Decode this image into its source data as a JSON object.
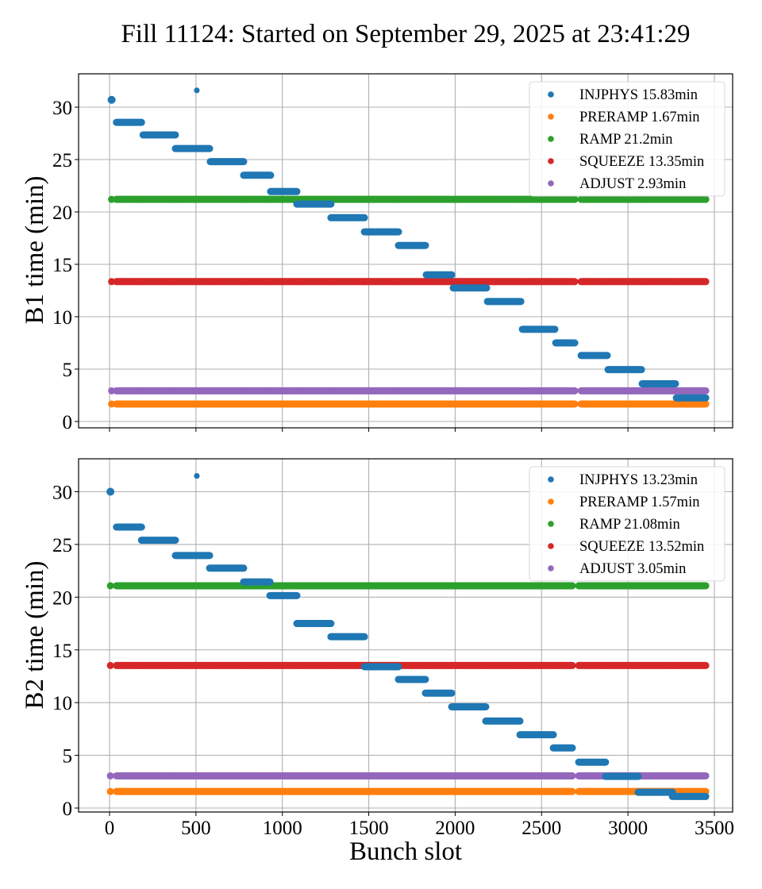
{
  "chart_data": [
    {
      "type": "scatter",
      "panel": "top",
      "title": "Fill 11124: Started on September 29, 2025 at 23:41:29",
      "xlabel": "Bunch slot",
      "ylabel": "B1 time (min)",
      "xlim": [
        -180,
        3600
      ],
      "ylim": [
        -0.5,
        33.2
      ],
      "xticks": [
        0,
        500,
        1000,
        1500,
        2000,
        2500,
        3000,
        3500
      ],
      "xtick_labels_visible": false,
      "yticks": [
        0,
        5,
        10,
        15,
        20,
        25,
        30
      ],
      "grid": true,
      "legend_position": "top-right",
      "batches": [
        [
          12,
          185
        ],
        [
          185,
          381
        ],
        [
          381,
          579
        ],
        [
          583,
          776
        ],
        [
          776,
          932
        ],
        [
          932,
          1084
        ],
        [
          1084,
          1281
        ],
        [
          1281,
          1475
        ],
        [
          1475,
          1672
        ],
        [
          1672,
          1828
        ],
        [
          1833,
          1980
        ],
        [
          1989,
          2182
        ],
        [
          2187,
          2380
        ],
        [
          2389,
          2577
        ],
        [
          2582,
          2692
        ],
        [
          2729,
          2880
        ],
        [
          2885,
          3078
        ],
        [
          3082,
          3275
        ],
        [
          3280,
          3450
        ]
      ],
      "series": [
        {
          "name": "INJPHYS",
          "legend": "INJPHYS 15.83min",
          "color": "#1f77b4",
          "points": [
            [
              12,
              30.7
            ],
            [
              505,
              31.6
            ]
          ],
          "segments": [
            [
              40,
              185,
              28.55
            ],
            [
              194,
              381,
              27.35
            ],
            [
              381,
              579,
              26.05
            ],
            [
              583,
              776,
              24.8
            ],
            [
              776,
              932,
              23.5
            ],
            [
              932,
              1084,
              21.95
            ],
            [
              1084,
              1281,
              20.75
            ],
            [
              1281,
              1475,
              19.45
            ],
            [
              1475,
              1672,
              18.1
            ],
            [
              1672,
              1828,
              16.8
            ],
            [
              1833,
              1980,
              14.0
            ],
            [
              1989,
              2182,
              12.75
            ],
            [
              2187,
              2380,
              11.45
            ],
            [
              2389,
              2577,
              8.8
            ],
            [
              2582,
              2692,
              7.5
            ],
            [
              2729,
              2880,
              6.3
            ],
            [
              2885,
              3078,
              4.95
            ],
            [
              3082,
              3275,
              3.6
            ],
            [
              3280,
              3450,
              2.25
            ]
          ]
        },
        {
          "name": "PRERAMP",
          "legend": "PRERAMP 1.67min",
          "color": "#ff7f0e",
          "value": 1.67,
          "points": [
            [
              12,
              1.67
            ]
          ]
        },
        {
          "name": "RAMP",
          "legend": "RAMP 21.2min",
          "color": "#2ca02c",
          "value": 21.2,
          "points": [
            [
              12,
              21.2
            ]
          ]
        },
        {
          "name": "SQUEEZE",
          "legend": "SQUEEZE 13.35min",
          "color": "#d62728",
          "value": 13.35,
          "points": [
            [
              12,
              13.35
            ]
          ]
        },
        {
          "name": "ADJUST",
          "legend": "ADJUST 2.93min",
          "color": "#9467bd",
          "value": 2.93,
          "points": [
            [
              12,
              2.93
            ]
          ]
        }
      ]
    },
    {
      "type": "scatter",
      "panel": "bottom",
      "xlabel": "Bunch slot",
      "ylabel": "B2 time (min)",
      "xlim": [
        -180,
        3600
      ],
      "ylim": [
        -0.5,
        33.2
      ],
      "xticks": [
        0,
        500,
        1000,
        1500,
        2000,
        2500,
        3000,
        3500
      ],
      "xtick_labels": [
        "0",
        "500",
        "1000",
        "1500",
        "2000",
        "2500",
        "3000",
        "3500"
      ],
      "yticks": [
        0,
        5,
        10,
        15,
        20,
        25,
        30
      ],
      "grid": true,
      "legend_position": "top-right",
      "batches": [
        [
          40,
          185
        ],
        [
          185,
          381
        ],
        [
          381,
          579
        ],
        [
          579,
          776
        ],
        [
          776,
          928
        ],
        [
          928,
          1084
        ],
        [
          1084,
          1281
        ],
        [
          1281,
          1475
        ],
        [
          1475,
          1672
        ],
        [
          1672,
          1828
        ],
        [
          1828,
          1980
        ],
        [
          1980,
          2177
        ],
        [
          2177,
          2375
        ],
        [
          2375,
          2568
        ],
        [
          2568,
          2678
        ],
        [
          2715,
          2870
        ],
        [
          2870,
          3059
        ],
        [
          3059,
          3257
        ],
        [
          3257,
          3450
        ]
      ],
      "series": [
        {
          "name": "INJPHYS",
          "legend": "INJPHYS 13.23min",
          "color": "#1f77b4",
          "points": [
            [
              5,
              30.0
            ],
            [
              505,
              31.5
            ]
          ],
          "segments": [
            [
              40,
              185,
              26.65
            ],
            [
              185,
              381,
              25.4
            ],
            [
              381,
              579,
              23.95
            ],
            [
              579,
              776,
              22.75
            ],
            [
              776,
              928,
              21.45
            ],
            [
              928,
              1084,
              20.15
            ],
            [
              1084,
              1281,
              17.5
            ],
            [
              1281,
              1475,
              16.25
            ],
            [
              1475,
              1672,
              13.4
            ],
            [
              1672,
              1828,
              12.2
            ],
            [
              1828,
              1980,
              10.9
            ],
            [
              1980,
              2177,
              9.6
            ],
            [
              2177,
              2375,
              8.25
            ],
            [
              2375,
              2568,
              6.95
            ],
            [
              2568,
              2678,
              5.7
            ],
            [
              2715,
              2870,
              4.35
            ],
            [
              2870,
              3059,
              3.0
            ],
            [
              3059,
              3257,
              1.5
            ],
            [
              3257,
              3450,
              1.1
            ]
          ]
        },
        {
          "name": "PRERAMP",
          "legend": "PRERAMP 1.57min",
          "color": "#ff7f0e",
          "value": 1.57,
          "points": [
            [
              5,
              1.57
            ]
          ]
        },
        {
          "name": "RAMP",
          "legend": "RAMP 21.08min",
          "color": "#2ca02c",
          "value": 21.08,
          "points": [
            [
              5,
              21.08
            ]
          ]
        },
        {
          "name": "SQUEEZE",
          "legend": "SQUEEZE 13.52min",
          "color": "#d62728",
          "value": 13.52,
          "points": [
            [
              5,
              13.52
            ]
          ]
        },
        {
          "name": "ADJUST",
          "legend": "ADJUST 3.05min",
          "color": "#9467bd",
          "value": 3.05,
          "points": [
            [
              5,
              3.05
            ]
          ]
        }
      ]
    }
  ]
}
